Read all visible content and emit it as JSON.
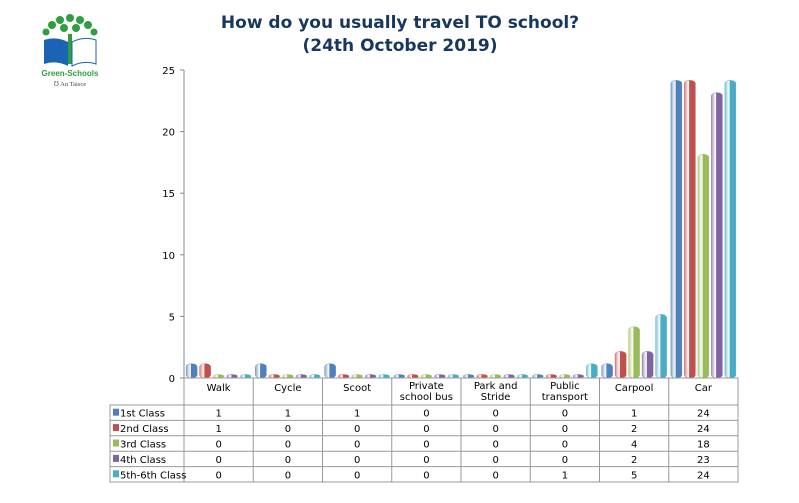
{
  "logo": {
    "name": "Green-Schools",
    "sub": "An Taisce"
  },
  "chart_data": {
    "type": "bar",
    "title": "How do you usually travel TO school?",
    "subtitle": "(24th October 2019)",
    "categories": [
      "Walk",
      "Cycle",
      "Scoot",
      "Private school bus",
      "Park and Stride",
      "Public transport",
      "Carpool",
      "Car"
    ],
    "category_lines": [
      [
        "Walk"
      ],
      [
        "Cycle"
      ],
      [
        "Scoot"
      ],
      [
        "Private",
        "school bus"
      ],
      [
        "Park and",
        "Stride"
      ],
      [
        "Public",
        "transport"
      ],
      [
        "Carpool"
      ],
      [
        "Car"
      ]
    ],
    "series": [
      {
        "name": "1st Class",
        "color": "#4f81bd",
        "values": [
          1,
          1,
          1,
          0,
          0,
          0,
          1,
          24
        ]
      },
      {
        "name": "2nd Class",
        "color": "#c0504d",
        "values": [
          1,
          0,
          0,
          0,
          0,
          0,
          2,
          24
        ]
      },
      {
        "name": "3rd Class",
        "color": "#9bbb59",
        "values": [
          0,
          0,
          0,
          0,
          0,
          0,
          4,
          18
        ]
      },
      {
        "name": "4th Class",
        "color": "#8064a2",
        "values": [
          0,
          0,
          0,
          0,
          0,
          0,
          2,
          23
        ]
      },
      {
        "name": "5th-6th Class",
        "color": "#4bacc6",
        "values": [
          0,
          0,
          0,
          0,
          0,
          1,
          5,
          24
        ]
      }
    ],
    "ylim": [
      0,
      25
    ],
    "yticks": [
      0,
      5,
      10,
      15,
      20,
      25
    ],
    "legend": "data-table"
  }
}
